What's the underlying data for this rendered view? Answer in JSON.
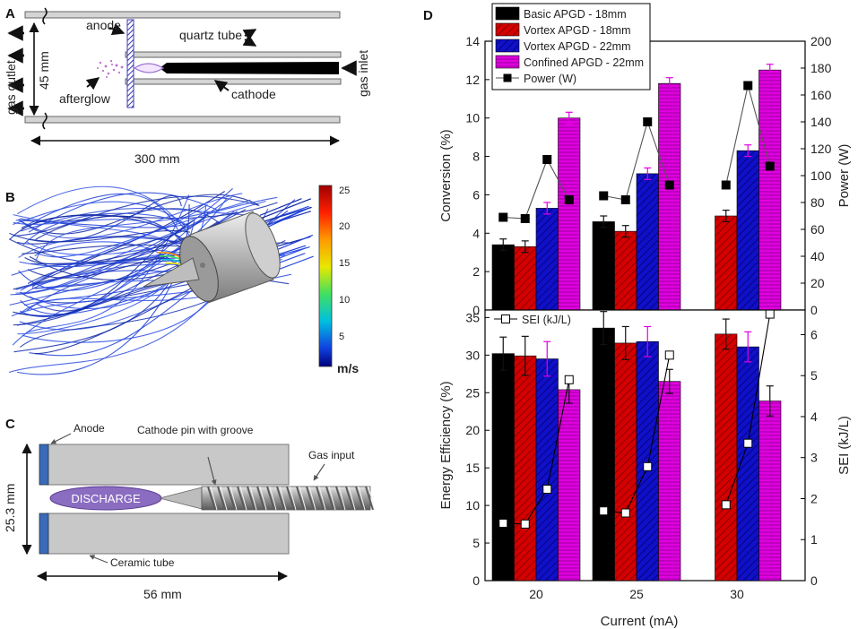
{
  "panels": {
    "a": "A",
    "b": "B",
    "c": "C",
    "d": "D"
  },
  "panel_a": {
    "anode": "anode",
    "quartz_tube": "quartz tube",
    "gas_outlet": "gas outlet",
    "gas_inlet": "gas inlet",
    "height": "45 mm",
    "afterglow": "afterglow",
    "cathode": "cathode",
    "length": "300 mm"
  },
  "panel_b": {
    "colorbar_ticks": [
      "25",
      "20",
      "15",
      "10",
      "5"
    ],
    "colorbar_unit": "m/s"
  },
  "panel_c": {
    "anode": "Anode",
    "cathode_pin": "Cathode pin with groove",
    "gas_input": "Gas input",
    "height": "25.3 mm",
    "discharge": "DISCHARGE",
    "ceramic_tube": "Ceramic tube",
    "length": "56 mm"
  },
  "colors": {
    "basic": "#000000",
    "vortex18": "#d40000",
    "vortex22": "#1010c8",
    "confined": "#e000e0",
    "flow_blue": "#1f3fd8",
    "quartz_hatch": "#3a3ab8",
    "ceramic": "#c8c8c8"
  },
  "chart_data": [
    {
      "type": "bar",
      "title": "",
      "xlabel": "",
      "ylabel": "Conversion (%)",
      "y2label": "Power (W)",
      "categories": [
        "20",
        "25",
        "30"
      ],
      "ylim": [
        0,
        14
      ],
      "y2lim": [
        0,
        200
      ],
      "yticks": [
        "0",
        "2",
        "4",
        "6",
        "8",
        "10",
        "12",
        "14"
      ],
      "y2ticks": [
        "0",
        "20",
        "40",
        "60",
        "80",
        "100",
        "120",
        "140",
        "160",
        "180",
        "200"
      ],
      "series": [
        {
          "name": "Basic APGD - 18mm",
          "values": [
            3.4,
            4.6,
            null
          ],
          "errors": [
            0.3,
            0.3,
            null
          ]
        },
        {
          "name": "Vortex APGD - 18mm",
          "values": [
            3.3,
            4.1,
            4.9
          ],
          "errors": [
            0.3,
            0.3,
            0.3
          ]
        },
        {
          "name": "Vortex APGD - 22mm",
          "values": [
            5.3,
            7.1,
            8.3
          ],
          "errors": [
            0.3,
            0.3,
            0.3
          ]
        },
        {
          "name": "Confined APGD - 22mm",
          "values": [
            10.0,
            11.8,
            12.5
          ],
          "errors": [
            0.3,
            0.3,
            0.3
          ]
        }
      ],
      "line_series": {
        "name": "Power (W)",
        "axis": "right",
        "points": [
          {
            "category": "20",
            "series": "Basic APGD - 18mm",
            "value": 69
          },
          {
            "category": "20",
            "series": "Vortex APGD - 18mm",
            "value": 68
          },
          {
            "category": "20",
            "series": "Vortex APGD - 22mm",
            "value": 112
          },
          {
            "category": "20",
            "series": "Confined APGD - 22mm",
            "value": 82
          },
          {
            "category": "25",
            "series": "Basic APGD - 18mm",
            "value": 85
          },
          {
            "category": "25",
            "series": "Vortex APGD - 18mm",
            "value": 82
          },
          {
            "category": "25",
            "series": "Vortex APGD - 22mm",
            "value": 140
          },
          {
            "category": "25",
            "series": "Confined APGD - 22mm",
            "value": 93
          },
          {
            "category": "30",
            "series": "Vortex APGD - 18mm",
            "value": 93
          },
          {
            "category": "30",
            "series": "Vortex APGD - 22mm",
            "value": 167
          },
          {
            "category": "30",
            "series": "Confined APGD - 22mm",
            "value": 107
          }
        ]
      }
    },
    {
      "type": "bar",
      "title": "",
      "xlabel": "Current (mA)",
      "ylabel": "Energy Efficiency (%)",
      "y2label": "SEI (kJ/L)",
      "categories": [
        "20",
        "25",
        "30"
      ],
      "ylim": [
        0,
        36
      ],
      "y2lim": [
        0,
        6.6
      ],
      "yticks": [
        "0",
        "5",
        "10",
        "15",
        "20",
        "25",
        "30",
        "35"
      ],
      "y2ticks": [
        "0",
        "1",
        "2",
        "3",
        "4",
        "5",
        "6"
      ],
      "series": [
        {
          "name": "Basic APGD - 18mm",
          "values": [
            30.2,
            33.6,
            null
          ],
          "errors": [
            2.2,
            2.2,
            null
          ]
        },
        {
          "name": "Vortex APGD - 18mm",
          "values": [
            29.9,
            31.6,
            32.8
          ],
          "errors": [
            2.6,
            2.2,
            2.0
          ]
        },
        {
          "name": "Vortex APGD - 22mm",
          "values": [
            29.5,
            31.8,
            31.1
          ],
          "errors": [
            2.3,
            2.0,
            2.0
          ]
        },
        {
          "name": "Confined APGD - 22mm",
          "values": [
            25.4,
            26.5,
            23.9
          ],
          "errors": [
            1.8,
            1.6,
            2.0
          ]
        }
      ],
      "line_series": {
        "name": "SEI (kJ/L)",
        "axis": "right",
        "points": [
          {
            "category": "20",
            "series": "Basic APGD - 18mm",
            "value": 1.4
          },
          {
            "category": "20",
            "series": "Vortex APGD - 18mm",
            "value": 1.38
          },
          {
            "category": "20",
            "series": "Vortex APGD - 22mm",
            "value": 2.23
          },
          {
            "category": "20",
            "series": "Confined APGD - 22mm",
            "value": 4.9
          },
          {
            "category": "25",
            "series": "Basic APGD - 18mm",
            "value": 1.7
          },
          {
            "category": "25",
            "series": "Vortex APGD - 18mm",
            "value": 1.65
          },
          {
            "category": "25",
            "series": "Vortex APGD - 22mm",
            "value": 2.78
          },
          {
            "category": "25",
            "series": "Confined APGD - 22mm",
            "value": 5.5
          },
          {
            "category": "30",
            "series": "Vortex APGD - 18mm",
            "value": 1.85
          },
          {
            "category": "30",
            "series": "Vortex APGD - 22mm",
            "value": 3.35
          },
          {
            "category": "30",
            "series": "Confined APGD - 22mm",
            "value": 6.5
          }
        ]
      }
    }
  ]
}
